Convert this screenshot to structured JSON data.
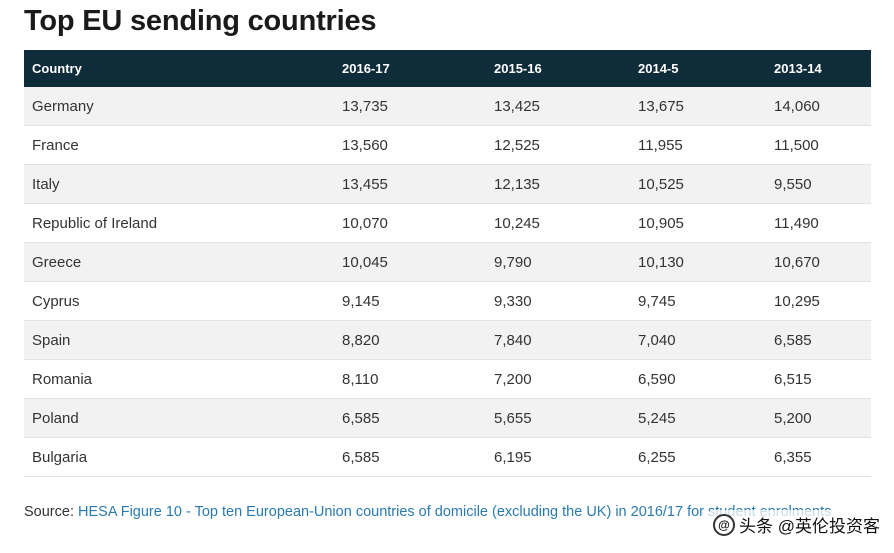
{
  "title": "Top EU sending countries",
  "table": {
    "headers": [
      "Country",
      "2016-17",
      "2015-16",
      "2014-5",
      "2013-14"
    ],
    "rows": [
      [
        "Germany",
        "13,735",
        "13,425",
        "13,675",
        "14,060"
      ],
      [
        "France",
        "13,560",
        "12,525",
        "11,955",
        "11,500"
      ],
      [
        "Italy",
        "13,455",
        "12,135",
        "10,525",
        "9,550"
      ],
      [
        "Republic of Ireland",
        "10,070",
        "10,245",
        "10,905",
        "11,490"
      ],
      [
        "Greece",
        "10,045",
        "9,790",
        "10,130",
        "10,670"
      ],
      [
        "Cyprus",
        "9,145",
        "9,330",
        "9,745",
        "10,295"
      ],
      [
        "Spain",
        "8,820",
        "7,840",
        "7,040",
        "6,585"
      ],
      [
        "Romania",
        "8,110",
        "7,200",
        "6,590",
        "6,515"
      ],
      [
        "Poland",
        "6,585",
        "5,655",
        "5,245",
        "5,200"
      ],
      [
        "Bulgaria",
        "6,585",
        "6,195",
        "6,255",
        "6,355"
      ]
    ]
  },
  "source": {
    "prefix": "Source: ",
    "link_text": "HESA Figure 10 - Top ten European-Union countries of domicile (excluding the UK) in 2016/17 for student enrolments"
  },
  "watermark": {
    "text": "头条 @英伦投资客",
    "icon": "at-sign-icon"
  },
  "colors": {
    "header_bg": "#0f2c3a",
    "link": "#2a7ab0",
    "row_alt": "#f2f2f2"
  }
}
